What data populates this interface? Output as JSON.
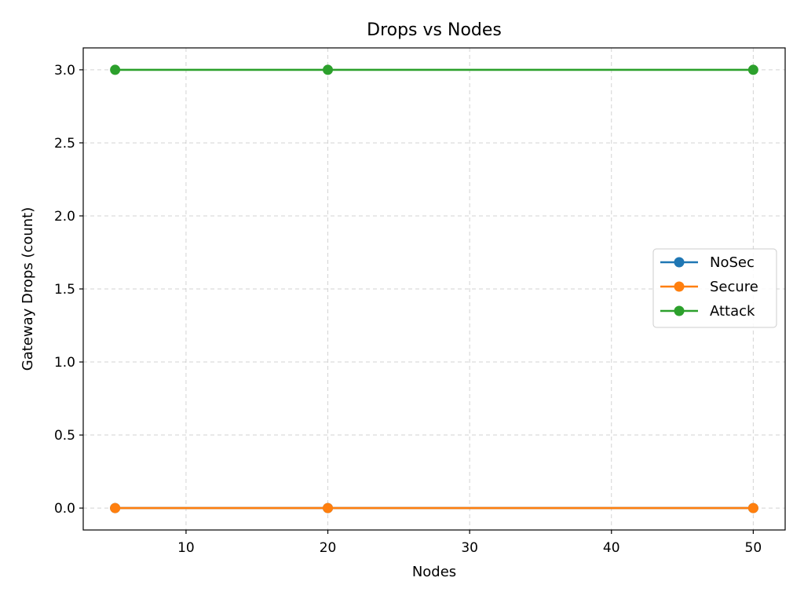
{
  "chart_data": {
    "type": "line",
    "title": "Drops vs Nodes",
    "xlabel": "Nodes",
    "ylabel": "Gateway Drops (count)",
    "x": [
      5,
      20,
      50
    ],
    "xlim": [
      2.75,
      52.25
    ],
    "ylim": [
      -0.15,
      3.15
    ],
    "xticks": [
      10,
      20,
      30,
      40,
      50
    ],
    "xtick_labels": [
      "10",
      "20",
      "30",
      "40",
      "50"
    ],
    "yticks": [
      0.0,
      0.5,
      1.0,
      1.5,
      2.0,
      2.5,
      3.0
    ],
    "ytick_labels": [
      "0.0",
      "0.5",
      "1.0",
      "1.5",
      "2.0",
      "2.5",
      "3.0"
    ],
    "grid": true,
    "legend_position": "center-right",
    "series": [
      {
        "name": "NoSec",
        "color": "#1f77b4",
        "values": [
          0,
          0,
          0
        ],
        "marker": "circle"
      },
      {
        "name": "Secure",
        "color": "#ff7f0e",
        "values": [
          0,
          0,
          0
        ],
        "marker": "circle"
      },
      {
        "name": "Attack",
        "color": "#2ca02c",
        "values": [
          3,
          3,
          3
        ],
        "marker": "circle"
      }
    ]
  }
}
